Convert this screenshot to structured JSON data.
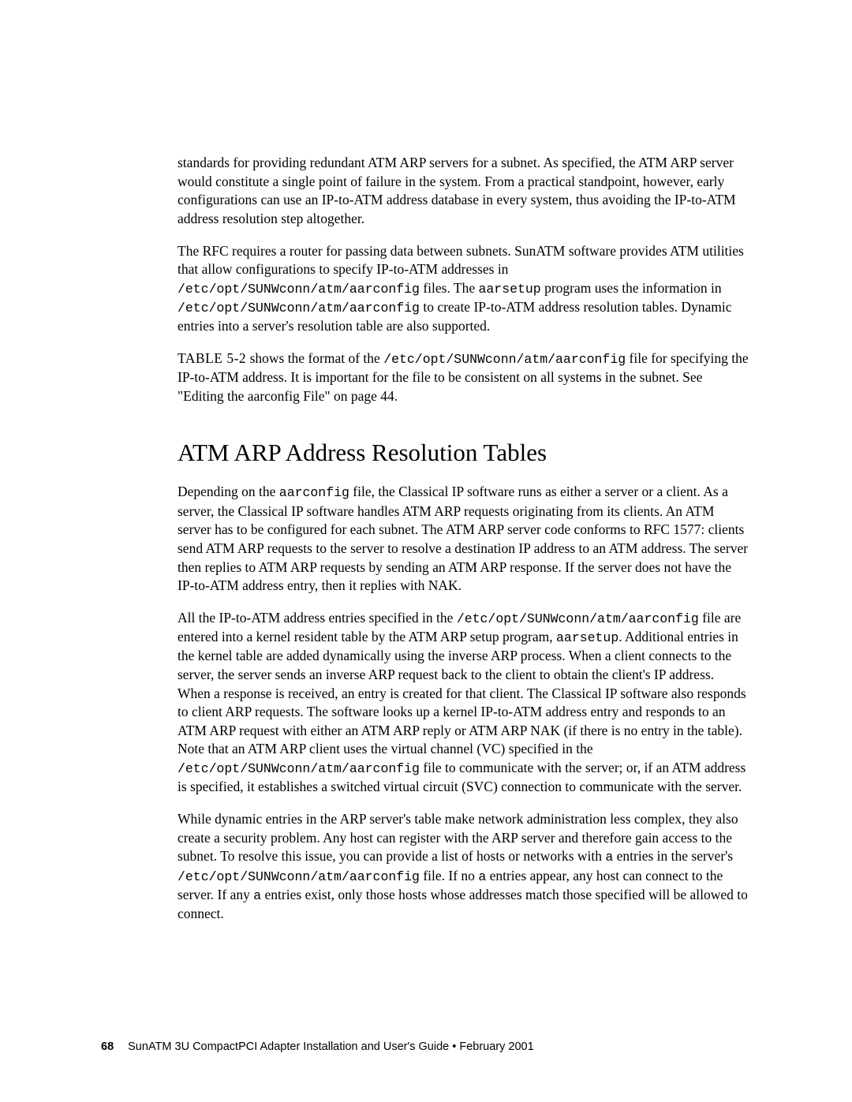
{
  "para1": {
    "text": "standards for providing redundant ATM ARP servers for a subnet. As specified, the ATM ARP server would constitute a single point of failure in the system. From a practical standpoint, however, early configurations can use an IP-to-ATM address database in every system, thus avoiding the IP-to-ATM address resolution step altogether."
  },
  "para2": {
    "t1": "The RFC requires a router for passing data between subnets. SunATM software provides ATM utilities that allow configurations to specify IP-to-ATM addresses in ",
    "c1": "/etc/opt/SUNWconn/atm/aarconfig",
    "t2": " files. The ",
    "c2": "aarsetup",
    "t3": " program uses the information in ",
    "c3": "/etc/opt/SUNWconn/atm/aarconfig",
    "t4": " to create IP-to-ATM address resolution tables. Dynamic entries into a server's resolution table are also supported."
  },
  "para3": {
    "caps": "TABLE 5-2",
    "t1": " shows the format of the ",
    "c1": "/etc/opt/SUNWconn/atm/aarconfig",
    "t2": " file for specifying the IP-to-ATM address. It is important for the file to be consistent on all systems in the subnet. See \"Editing the aarconfig File\" on page 44."
  },
  "heading": "ATM ARP Address Resolution Tables",
  "para4": {
    "t1": "Depending on the ",
    "c1": "aarconfig",
    "t2": " file, the Classical IP software runs as either a server or a client. As a server, the Classical IP software handles ATM ARP requests originating from its clients. An ATM server has to be configured for each subnet. The ATM ARP server code conforms to RFC 1577: clients send ATM ARP requests to the server to resolve a destination IP address to an ATM address. The server then replies to ATM ARP requests by sending an ATM ARP response. If the server does not have the IP-to-ATM address entry, then it replies with NAK."
  },
  "para5": {
    "t1": "All the IP-to-ATM address entries specified in the ",
    "c1": "/etc/opt/SUNWconn/atm/",
    "c1b": "aarconfig",
    "t2": " file are entered into a kernel resident table by the ATM ARP setup program, ",
    "c2": "aarsetup",
    "t3": ". Additional entries in the kernel table are added dynamically using the inverse ARP process. When a client connects to the server, the server sends an inverse ARP request back to the client to obtain the client's IP address. When a response is received, an entry is created for that client. The Classical IP software also responds to client ARP requests. The software looks up a kernel IP-to-ATM address entry and responds to an ATM ARP request with either an ATM ARP reply or ATM ARP NAK (if there is no entry in the table). Note that an ATM ARP client uses the virtual channel (VC) specified in the ",
    "c3": "/etc/opt/SUNWconn/atm/aarconfig",
    "t4": " file to communicate with the server; or, if an ATM address is specified, it establishes a switched virtual circuit (SVC) connection to communicate with the server."
  },
  "para6": {
    "t1": "While dynamic entries in the ARP server's table make network administration less complex, they also create a security problem. Any host can register with the ARP server and therefore gain access to the subnet. To resolve this issue, you can provide a list of hosts or networks with ",
    "c1": "a",
    "t2": " entries in the server's ",
    "c2": "/etc/opt/SUNWconn/atm/aarconfig",
    "t3": " file. If no ",
    "c3": "a",
    "t4": " entries appear, any host can connect to the server. If any ",
    "c4": "a",
    "t5": " entries exist, only those hosts whose addresses match those specified will be allowed to connect."
  },
  "footer": {
    "page_number": "68",
    "title": "SunATM 3U CompactPCI Adapter Installation and User's Guide • February 2001"
  }
}
